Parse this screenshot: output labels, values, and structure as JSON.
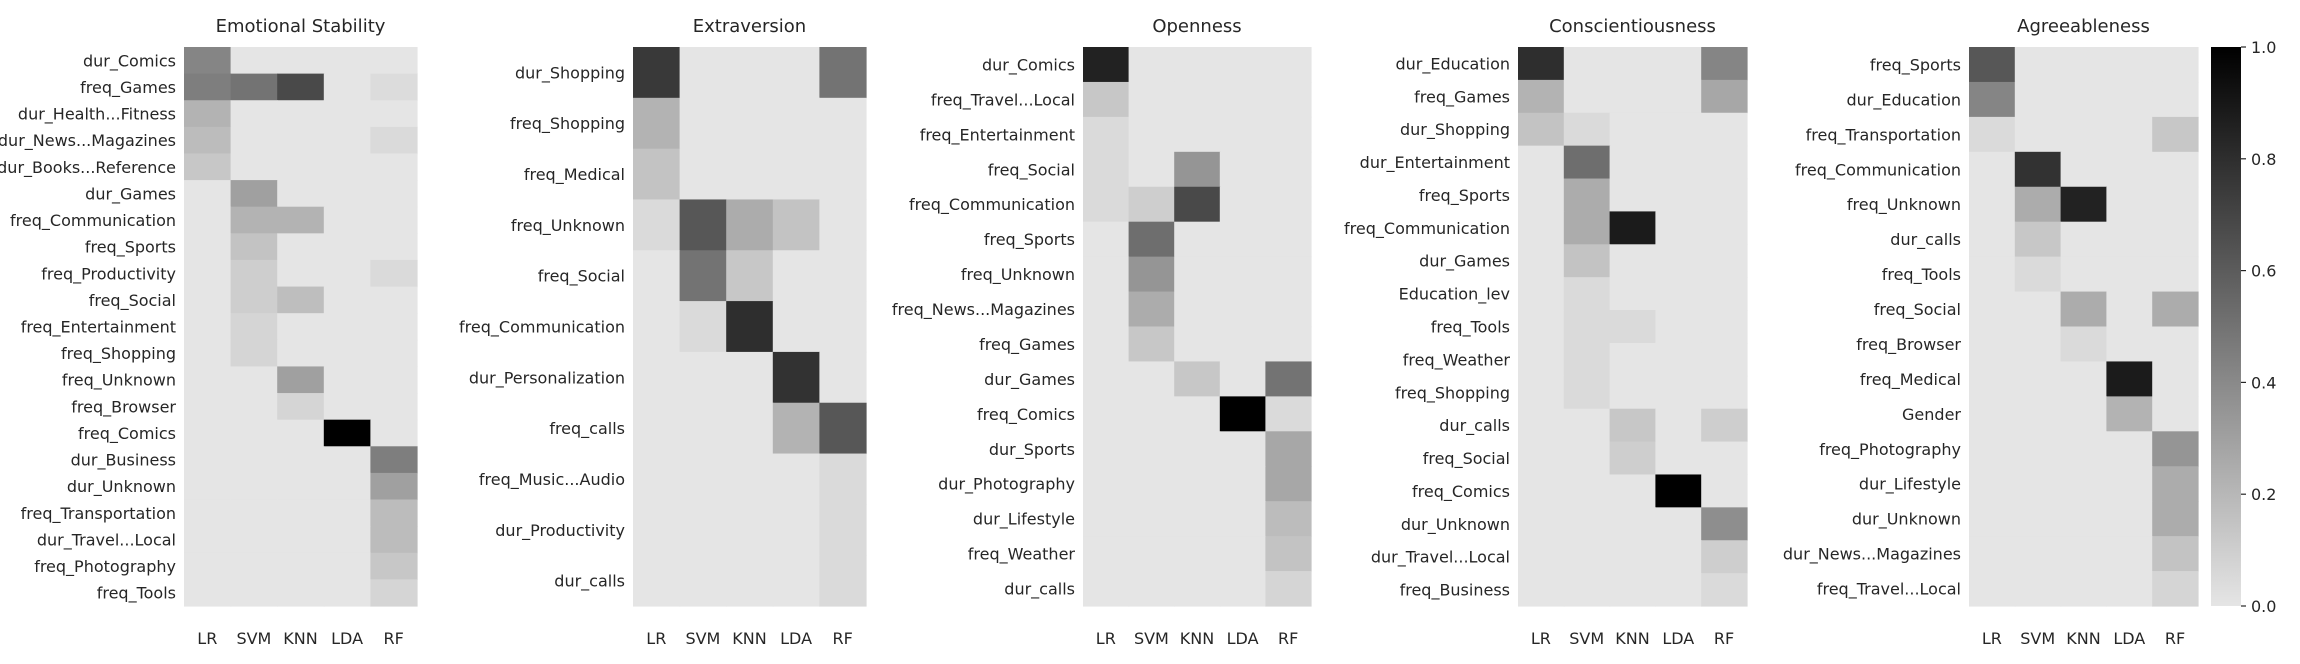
{
  "chart_data": {
    "type": "heatmap",
    "x_categories": [
      "LR",
      "SVM",
      "KNN",
      "LDA",
      "RF"
    ],
    "color_scale": {
      "min": 0.0,
      "max": 1.0,
      "low_color": "#e5e5e5",
      "high_color": "#000000",
      "ticks": [
        "0.0",
        "0.2",
        "0.4",
        "0.6",
        "0.8",
        "1.0"
      ]
    },
    "panels": [
      {
        "title": "Emotional Stability",
        "rows": [
          "dur_Comics",
          "freq_Games",
          "dur_Health...Fitness",
          "dur_News...Magazines",
          "dur_Books...Reference",
          "dur_Games",
          "freq_Communication",
          "freq_Sports",
          "freq_Productivity",
          "freq_Social",
          "freq_Entertainment",
          "freq_Shopping",
          "freq_Unknown",
          "freq_Browser",
          "freq_Comics",
          "dur_Business",
          "dur_Unknown",
          "freq_Transportation",
          "dur_Travel...Local",
          "freq_Photography",
          "freq_Tools"
        ],
        "values": [
          [
            0.42,
            0.0,
            0.0,
            0.0,
            0.0
          ],
          [
            0.45,
            0.5,
            0.68,
            0.0,
            0.04
          ],
          [
            0.22,
            0.0,
            0.0,
            0.0,
            0.0
          ],
          [
            0.18,
            0.0,
            0.0,
            0.0,
            0.05
          ],
          [
            0.13,
            0.0,
            0.0,
            0.0,
            0.0
          ],
          [
            0.0,
            0.3,
            0.0,
            0.0,
            0.0
          ],
          [
            0.0,
            0.22,
            0.22,
            0.0,
            0.0
          ],
          [
            0.0,
            0.15,
            0.0,
            0.0,
            0.0
          ],
          [
            0.0,
            0.1,
            0.0,
            0.0,
            0.05
          ],
          [
            0.0,
            0.1,
            0.17,
            0.0,
            0.0
          ],
          [
            0.0,
            0.07,
            0.0,
            0.0,
            0.0
          ],
          [
            0.0,
            0.07,
            0.0,
            0.0,
            0.0
          ],
          [
            0.0,
            0.0,
            0.3,
            0.0,
            0.0
          ],
          [
            0.0,
            0.0,
            0.07,
            0.0,
            0.0
          ],
          [
            0.0,
            0.0,
            0.0,
            1.0,
            0.0
          ],
          [
            0.0,
            0.0,
            0.0,
            0.0,
            0.45
          ],
          [
            0.0,
            0.0,
            0.0,
            0.0,
            0.3
          ],
          [
            0.0,
            0.0,
            0.0,
            0.0,
            0.18
          ],
          [
            0.0,
            0.0,
            0.0,
            0.0,
            0.18
          ],
          [
            0.0,
            0.0,
            0.0,
            0.0,
            0.13
          ],
          [
            0.0,
            0.0,
            0.0,
            0.0,
            0.07
          ]
        ]
      },
      {
        "title": "Extraversion",
        "rows": [
          "dur_Shopping",
          "freq_Shopping",
          "freq_Medical",
          "freq_Unknown",
          "freq_Social",
          "freq_Communication",
          "dur_Personalization",
          "freq_calls",
          "freq_Music...Audio",
          "dur_Productivity",
          "dur_calls"
        ],
        "values": [
          [
            0.75,
            0.0,
            0.0,
            0.0,
            0.5
          ],
          [
            0.22,
            0.0,
            0.0,
            0.0,
            0.0
          ],
          [
            0.15,
            0.0,
            0.0,
            0.0,
            0.0
          ],
          [
            0.05,
            0.62,
            0.25,
            0.15,
            0.0
          ],
          [
            0.0,
            0.5,
            0.13,
            0.0,
            0.0
          ],
          [
            0.0,
            0.05,
            0.8,
            0.0,
            0.0
          ],
          [
            0.0,
            0.0,
            0.0,
            0.78,
            0.0
          ],
          [
            0.0,
            0.0,
            0.0,
            0.22,
            0.62
          ],
          [
            0.0,
            0.0,
            0.0,
            0.0,
            0.05
          ],
          [
            0.0,
            0.0,
            0.0,
            0.0,
            0.05
          ],
          [
            0.0,
            0.0,
            0.0,
            0.0,
            0.05
          ]
        ]
      },
      {
        "title": "Openness",
        "rows": [
          "dur_Comics",
          "freq_Travel...Local",
          "freq_Entertainment",
          "freq_Social",
          "freq_Communication",
          "freq_Sports",
          "freq_Unknown",
          "freq_News...Magazines",
          "freq_Games",
          "dur_Games",
          "freq_Comics",
          "dur_Sports",
          "dur_Photography",
          "dur_Lifestyle",
          "freq_Weather",
          "dur_calls"
        ],
        "values": [
          [
            0.85,
            0.0,
            0.0,
            0.0,
            0.0
          ],
          [
            0.13,
            0.0,
            0.0,
            0.0,
            0.0
          ],
          [
            0.05,
            0.0,
            0.0,
            0.0,
            0.0
          ],
          [
            0.05,
            0.0,
            0.35,
            0.0,
            0.0
          ],
          [
            0.05,
            0.1,
            0.68,
            0.0,
            0.0
          ],
          [
            0.0,
            0.52,
            0.0,
            0.0,
            0.0
          ],
          [
            0.0,
            0.35,
            0.0,
            0.0,
            0.0
          ],
          [
            0.0,
            0.25,
            0.0,
            0.0,
            0.0
          ],
          [
            0.0,
            0.13,
            0.0,
            0.0,
            0.0
          ],
          [
            0.0,
            0.0,
            0.13,
            0.0,
            0.5
          ],
          [
            0.0,
            0.0,
            0.0,
            1.0,
            0.05
          ],
          [
            0.0,
            0.0,
            0.0,
            0.0,
            0.27
          ],
          [
            0.0,
            0.0,
            0.0,
            0.0,
            0.27
          ],
          [
            0.0,
            0.0,
            0.0,
            0.0,
            0.18
          ],
          [
            0.0,
            0.0,
            0.0,
            0.0,
            0.15
          ],
          [
            0.0,
            0.0,
            0.0,
            0.0,
            0.07
          ]
        ]
      },
      {
        "title": "Conscientiousness",
        "rows": [
          "dur_Education",
          "freq_Games",
          "dur_Shopping",
          "dur_Entertainment",
          "freq_Sports",
          "freq_Communication",
          "dur_Games",
          "Education_lev",
          "freq_Tools",
          "freq_Weather",
          "freq_Shopping",
          "dur_calls",
          "freq_Social",
          "freq_Comics",
          "dur_Unknown",
          "dur_Travel...Local",
          "freq_Business"
        ],
        "values": [
          [
            0.8,
            0.0,
            0.0,
            0.0,
            0.42
          ],
          [
            0.22,
            0.0,
            0.0,
            0.0,
            0.27
          ],
          [
            0.15,
            0.05,
            0.0,
            0.0,
            0.0
          ],
          [
            0.0,
            0.52,
            0.0,
            0.0,
            0.0
          ],
          [
            0.0,
            0.25,
            0.0,
            0.0,
            0.0
          ],
          [
            0.0,
            0.25,
            0.88,
            0.0,
            0.0
          ],
          [
            0.0,
            0.15,
            0.0,
            0.0,
            0.0
          ],
          [
            0.0,
            0.05,
            0.0,
            0.0,
            0.0
          ],
          [
            0.0,
            0.05,
            0.05,
            0.0,
            0.0
          ],
          [
            0.0,
            0.05,
            0.0,
            0.0,
            0.0
          ],
          [
            0.0,
            0.05,
            0.0,
            0.0,
            0.0
          ],
          [
            0.0,
            0.0,
            0.13,
            0.0,
            0.1
          ],
          [
            0.0,
            0.0,
            0.1,
            0.0,
            0.0
          ],
          [
            0.0,
            0.0,
            0.0,
            1.0,
            0.0
          ],
          [
            0.0,
            0.0,
            0.0,
            0.0,
            0.38
          ],
          [
            0.0,
            0.0,
            0.0,
            0.0,
            0.1
          ],
          [
            0.0,
            0.0,
            0.0,
            0.0,
            0.05
          ]
        ]
      },
      {
        "title": "Agreeableness",
        "rows": [
          "freq_Sports",
          "dur_Education",
          "freq_Transportation",
          "freq_Communication",
          "freq_Unknown",
          "dur_calls",
          "freq_Tools",
          "freq_Social",
          "freq_Browser",
          "freq_Medical",
          "Gender",
          "freq_Photography",
          "dur_Lifestyle",
          "dur_Unknown",
          "dur_News...Magazines",
          "freq_Travel...Local"
        ],
        "values": [
          [
            0.62,
            0.0,
            0.0,
            0.0,
            0.0
          ],
          [
            0.42,
            0.0,
            0.0,
            0.0,
            0.0
          ],
          [
            0.05,
            0.0,
            0.0,
            0.0,
            0.13
          ],
          [
            0.0,
            0.78,
            0.0,
            0.0,
            0.0
          ],
          [
            0.0,
            0.25,
            0.85,
            0.0,
            0.0
          ],
          [
            0.0,
            0.13,
            0.0,
            0.0,
            0.0
          ],
          [
            0.0,
            0.05,
            0.0,
            0.0,
            0.0
          ],
          [
            0.0,
            0.0,
            0.25,
            0.0,
            0.25
          ],
          [
            0.0,
            0.0,
            0.05,
            0.0,
            0.0
          ],
          [
            0.0,
            0.0,
            0.0,
            0.88,
            0.0
          ],
          [
            0.0,
            0.0,
            0.0,
            0.22,
            0.0
          ],
          [
            0.0,
            0.0,
            0.0,
            0.0,
            0.35
          ],
          [
            0.0,
            0.0,
            0.0,
            0.0,
            0.25
          ],
          [
            0.0,
            0.0,
            0.0,
            0.0,
            0.25
          ],
          [
            0.0,
            0.0,
            0.0,
            0.0,
            0.15
          ],
          [
            0.0,
            0.0,
            0.0,
            0.0,
            0.07
          ]
        ]
      }
    ]
  }
}
